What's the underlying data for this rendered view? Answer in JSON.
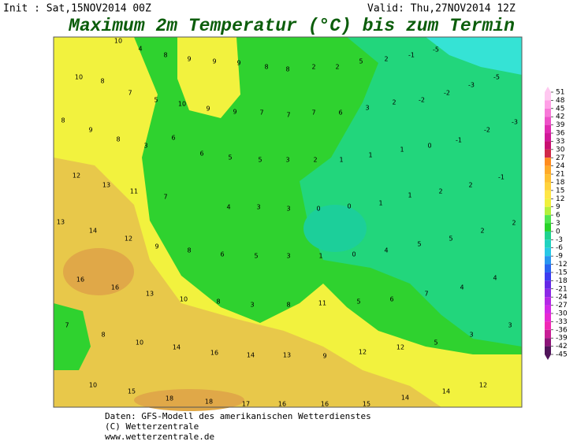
{
  "header": {
    "init": "Init : Sat,15NOV2014 00Z",
    "valid": "Valid: Thu,27NOV2014 12Z",
    "title": "Maximum 2m Temperatur (°C) bis zum Termin"
  },
  "map": {
    "values": [
      10,
      4,
      8,
      9,
      9,
      9,
      8,
      8,
      2,
      2,
      5,
      2,
      -1,
      -5,
      10,
      8,
      7,
      5,
      10,
      9,
      9,
      7,
      7,
      7,
      6,
      3,
      2,
      -2,
      -2,
      -3,
      -5,
      8,
      9,
      8,
      3,
      6,
      6,
      5,
      5,
      3,
      2,
      1,
      1,
      1,
      0,
      -1,
      -2,
      -3,
      12,
      13,
      11,
      7,
      4,
      3,
      3,
      0,
      0,
      1,
      1,
      2,
      2,
      -1,
      13,
      14,
      12,
      9,
      8,
      6,
      5,
      3,
      1,
      0,
      4,
      5,
      5,
      2,
      2,
      16,
      16,
      13,
      10,
      8,
      3,
      8,
      11,
      5,
      6,
      7,
      4,
      4,
      7,
      8,
      10,
      14,
      16,
      14,
      13,
      9,
      12,
      12,
      5,
      3,
      3,
      10,
      15,
      18,
      18,
      17,
      16,
      16,
      15,
      14,
      14,
      12
    ]
  },
  "legend": {
    "ticks": [
      51,
      48,
      45,
      42,
      39,
      36,
      33,
      30,
      27,
      24,
      21,
      18,
      15,
      12,
      9,
      6,
      3,
      0,
      -3,
      -6,
      -9,
      -12,
      -15,
      -18,
      -21,
      -24,
      -27,
      -30,
      -33,
      -36,
      -39,
      -42,
      -45
    ]
  },
  "footer": {
    "lines": [
      "Daten: GFS-Modell des amerikanischen Wetterdienstes",
      "(C) Wetterzentrale",
      "www.wetterzentrale.de"
    ]
  }
}
